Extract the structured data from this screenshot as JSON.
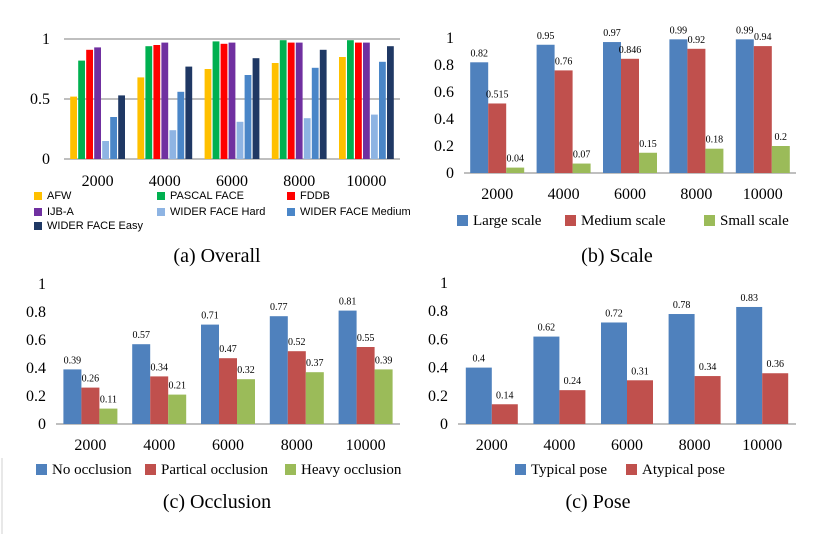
{
  "colors": {
    "AFW": "#FFC000",
    "PASCAL FACE": "#00B050",
    "FDDB": "#FF0000",
    "IJB-A": "#7030A0",
    "WIDER FACE Hard": "#8EB4E3",
    "WIDER FACE Medium": "#4A86C8",
    "WIDER FACE Easy": "#1F3864",
    "blue": "#4F81BD",
    "red": "#C0504D",
    "green": "#9BBB59",
    "grid": "#7F7F7F"
  },
  "chart_data": [
    {
      "id": "overall",
      "type": "bar",
      "caption": "(a) Overall",
      "categories": [
        "2000",
        "4000",
        "6000",
        "8000",
        "10000"
      ],
      "ylim": [
        0,
        1
      ],
      "yticks": [
        "0",
        "0.5",
        "1"
      ],
      "series": [
        {
          "name": "AFW",
          "values": [
            0.52,
            0.68,
            0.75,
            0.8,
            0.85
          ]
        },
        {
          "name": "PASCAL FACE",
          "values": [
            0.82,
            0.94,
            0.98,
            0.99,
            0.99
          ]
        },
        {
          "name": "FDDB",
          "values": [
            0.91,
            0.95,
            0.96,
            0.97,
            0.97
          ]
        },
        {
          "name": "IJB-A",
          "values": [
            0.93,
            0.97,
            0.97,
            0.97,
            0.97
          ]
        },
        {
          "name": "WIDER FACE Hard",
          "values": [
            0.15,
            0.24,
            0.31,
            0.34,
            0.37
          ]
        },
        {
          "name": "WIDER FACE Medium",
          "values": [
            0.35,
            0.56,
            0.7,
            0.76,
            0.81
          ]
        },
        {
          "name": "WIDER FACE Easy",
          "values": [
            0.53,
            0.77,
            0.84,
            0.91,
            0.94
          ]
        }
      ],
      "legend": [
        "AFW",
        "PASCAL FACE",
        "FDDB",
        "IJB-A",
        "WIDER FACE Hard",
        "WIDER FACE Medium",
        "WIDER FACE Easy"
      ]
    },
    {
      "id": "scale",
      "type": "bar",
      "caption": "(b) Scale",
      "categories": [
        "2000",
        "4000",
        "6000",
        "8000",
        "10000"
      ],
      "ylim": [
        0,
        1
      ],
      "yticks": [
        "0",
        "0.2",
        "0.4",
        "0.6",
        "0.8",
        "1"
      ],
      "series": [
        {
          "name": "Large scale",
          "values": [
            0.82,
            0.95,
            0.97,
            0.99,
            0.99
          ],
          "labels": [
            "0.82",
            "0.95",
            "0.97",
            "0.99",
            "0.99"
          ]
        },
        {
          "name": "Medium scale",
          "values": [
            0.515,
            0.76,
            0.846,
            0.92,
            0.94
          ],
          "labels": [
            "0.515",
            "0.76",
            "0.846",
            "0.92",
            "0.94"
          ]
        },
        {
          "name": "Small scale",
          "values": [
            0.04,
            0.07,
            0.15,
            0.18,
            0.2
          ],
          "labels": [
            "0.04",
            "0.07",
            "0.15",
            "0.18",
            "0.2"
          ]
        }
      ]
    },
    {
      "id": "occlusion",
      "type": "bar",
      "caption": "(c) Occlusion",
      "categories": [
        "2000",
        "4000",
        "6000",
        "8000",
        "10000"
      ],
      "ylim": [
        0,
        1
      ],
      "yticks": [
        "0",
        "0.2",
        "0.4",
        "0.6",
        "0.8",
        "1"
      ],
      "series": [
        {
          "name": "No occlusion",
          "values": [
            0.39,
            0.57,
            0.71,
            0.77,
            0.81
          ],
          "labels": [
            "0.39",
            "0.57",
            "0.71",
            "0.77",
            "0.81"
          ]
        },
        {
          "name": "Partical occlusion",
          "values": [
            0.26,
            0.34,
            0.47,
            0.52,
            0.55
          ],
          "labels": [
            "0.26",
            "0.34",
            "0.47",
            "0.52",
            "0.55"
          ]
        },
        {
          "name": "Heavy occlusion",
          "values": [
            0.11,
            0.21,
            0.32,
            0.37,
            0.39
          ],
          "labels": [
            "0.11",
            "0.21",
            "0.32",
            "0.37",
            "0.39"
          ]
        }
      ]
    },
    {
      "id": "pose",
      "type": "bar",
      "caption": "(c) Pose",
      "categories": [
        "2000",
        "4000",
        "6000",
        "8000",
        "10000"
      ],
      "ylim": [
        0,
        1
      ],
      "yticks": [
        "0",
        "0.2",
        "0.4",
        "0.6",
        "0.8",
        "1"
      ],
      "series": [
        {
          "name": "Typical pose",
          "values": [
            0.4,
            0.62,
            0.72,
            0.78,
            0.83
          ],
          "labels": [
            "0.4",
            "0.62",
            "0.72",
            "0.78",
            "0.83"
          ]
        },
        {
          "name": "Atypical pose",
          "values": [
            0.14,
            0.24,
            0.31,
            0.34,
            0.36
          ],
          "labels": [
            "0.14",
            "0.24",
            "0.31",
            "0.34",
            "0.36"
          ]
        }
      ]
    }
  ]
}
